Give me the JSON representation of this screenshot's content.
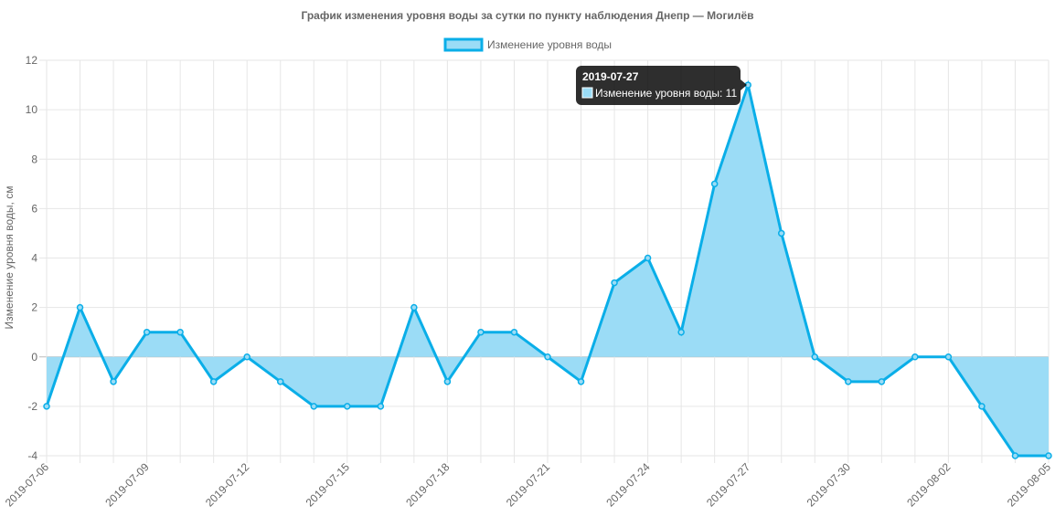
{
  "chart_data": {
    "type": "line",
    "title": "График изменения уровня воды за сутки по пункту наблюдения Днепр — Могилёв",
    "xlabel": "",
    "ylabel": "Изменение уровня воды, см",
    "ylim": [
      -4,
      12
    ],
    "y_ticks": [
      -4,
      -2,
      0,
      2,
      4,
      6,
      8,
      10,
      12
    ],
    "grid": true,
    "fill": true,
    "legend_position": "top-center",
    "x": [
      "2019-07-06",
      "2019-07-07",
      "2019-07-08",
      "2019-07-09",
      "2019-07-10",
      "2019-07-11",
      "2019-07-12",
      "2019-07-13",
      "2019-07-14",
      "2019-07-15",
      "2019-07-16",
      "2019-07-17",
      "2019-07-18",
      "2019-07-19",
      "2019-07-20",
      "2019-07-21",
      "2019-07-22",
      "2019-07-23",
      "2019-07-24",
      "2019-07-25",
      "2019-07-26",
      "2019-07-27",
      "2019-07-28",
      "2019-07-29",
      "2019-07-30",
      "2019-07-31",
      "2019-08-01",
      "2019-08-02",
      "2019-08-03",
      "2019-08-04",
      "2019-08-05"
    ],
    "x_tick_labels": [
      "2019-07-06",
      "2019-07-09",
      "2019-07-12",
      "2019-07-15",
      "2019-07-18",
      "2019-07-21",
      "2019-07-24",
      "2019-07-27",
      "2019-07-30",
      "2019-08-02",
      "2019-08-05"
    ],
    "series": [
      {
        "name": "Изменение уровня воды",
        "values": [
          -2,
          2,
          -1,
          1,
          1,
          -1,
          0,
          -1,
          -2,
          -2,
          -2,
          2,
          -1,
          1,
          1,
          0,
          -1,
          3,
          4,
          1,
          7,
          11,
          5,
          0,
          -1,
          -1,
          0,
          0,
          -2,
          -4,
          -4
        ],
        "line_color": "#0aaee8",
        "fill_color": "#9bdcf6"
      }
    ],
    "tooltip": {
      "title": "2019-07-27",
      "label": "Изменение уровня воды: 11"
    }
  }
}
